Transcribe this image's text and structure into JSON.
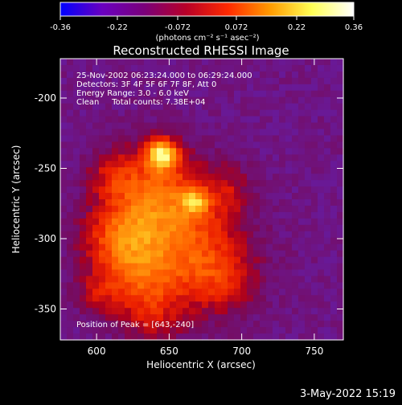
{
  "colorbar": {
    "ticks": [
      "-0.36",
      "-0.22",
      "-0.072",
      "0.072",
      "0.22",
      "0.36"
    ],
    "units_label": "(photons cm⁻² s⁻¹ asec⁻²)",
    "range": [
      -0.36,
      0.36
    ],
    "gradient": [
      "#0000ff",
      "#6a00c0",
      "#7a007a",
      "#b80028",
      "#ff2a00",
      "#ff9a00",
      "#ffff55",
      "#ffffff"
    ]
  },
  "chart_data": {
    "type": "heatmap",
    "title": "Reconstructed RHESSI Image",
    "xlabel": "Heliocentric X (arcsec)",
    "ylabel": "Heliocentric Y (arcsec)",
    "xlim": [
      575,
      770
    ],
    "ylim": [
      -372,
      -172
    ],
    "x_ticks": [
      600,
      650,
      700,
      750
    ],
    "y_ticks": [
      -200,
      -250,
      -300,
      -350
    ],
    "info_lines": [
      "25-Nov-2002 06:23:24.000 to 06:29:24.000",
      "Detectors: 3F 4F 5F 6F 7F 8F, Att 0",
      "Energy Range: 3.0 - 6.0 keV",
      "Clean     Total counts: 7.38E+04"
    ],
    "peak_label": "Position of Peak = [643,-240]",
    "peak": [
      643,
      -240
    ],
    "blobs": [
      {
        "x": 645,
        "y": -240,
        "sigma": 7,
        "amp": 0.24
      },
      {
        "x": 668,
        "y": -274,
        "sigma": 6,
        "amp": 0.13
      },
      {
        "x": 640,
        "y": -265,
        "sigma": 22,
        "amp": 0.12
      },
      {
        "x": 660,
        "y": -300,
        "sigma": 28,
        "amp": 0.12
      },
      {
        "x": 615,
        "y": -300,
        "sigma": 18,
        "amp": 0.11
      },
      {
        "x": 630,
        "y": -330,
        "sigma": 20,
        "amp": 0.1
      },
      {
        "x": 685,
        "y": -330,
        "sigma": 18,
        "amp": 0.08
      },
      {
        "x": 610,
        "y": -255,
        "sigma": 12,
        "amp": 0.06
      },
      {
        "x": 690,
        "y": -265,
        "sigma": 12,
        "amp": 0.05
      },
      {
        "x": 640,
        "y": -360,
        "sigma": 14,
        "amp": 0.05
      },
      {
        "x": 600,
        "y": -340,
        "sigma": 10,
        "amp": 0.05
      }
    ],
    "background": -0.035
  },
  "footer": {
    "timestamp": "3-May-2022 15:19"
  }
}
